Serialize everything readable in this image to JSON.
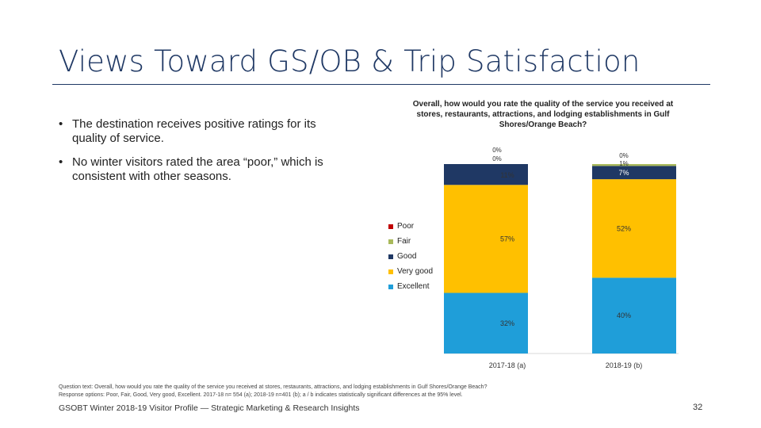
{
  "slide": {
    "title": "Views Toward GS/OB & Trip Satisfaction",
    "bullets": [
      "The destination receives positive ratings for its quality of service.",
      "No winter visitors rated the area “poor,” which is consistent with other seasons."
    ],
    "bullet_glyph": "•",
    "footnote_line1": "Question text: Overall, how would you rate the quality of the service you received at stores, restaurants, attractions, and lodging establishments in Gulf Shores/Orange Beach?",
    "footnote_line2": "Response options: Poor, Fair, Good, Very good, Excellent. 2017-18 n= 554 (a); 2018-19 n=401 (b); a / b indicates statistically significant differences at the 95% level.",
    "footer": "GSOBT Winter 2018-19 Visitor Profile — Strategic Marketing & Research Insights",
    "page_number": "32"
  },
  "chart_data": {
    "type": "bar",
    "stacked": true,
    "orientation": "vertical",
    "title": "Overall, how would you rate the quality of the service you received at stores, restaurants, attractions, and lodging establishments in Gulf Shores/Orange Beach?",
    "categories": [
      "2017-18 (a)",
      "2018-19 (b)"
    ],
    "ylim": [
      0,
      100
    ],
    "series": [
      {
        "name": "Excellent",
        "color": "#1f9ed9",
        "values": [
          32,
          40
        ],
        "labels": [
          "32%",
          "40%"
        ]
      },
      {
        "name": "Very good",
        "color": "#ffc000",
        "values": [
          57,
          52
        ],
        "labels": [
          "57%",
          "52%"
        ]
      },
      {
        "name": "Good",
        "color": "#1f3864",
        "values": [
          11,
          7
        ],
        "labels": [
          "11%",
          "7%"
        ]
      },
      {
        "name": "Fair",
        "color": "#a9b95b",
        "values": [
          0,
          1
        ],
        "labels": [
          "0%",
          "1%"
        ]
      },
      {
        "name": "Poor",
        "color": "#c00000",
        "values": [
          0,
          0
        ],
        "labels": [
          "0%",
          "0%"
        ]
      }
    ],
    "legend_order": [
      "Poor",
      "Fair",
      "Good",
      "Very good",
      "Excellent"
    ],
    "legend_position": "left"
  }
}
